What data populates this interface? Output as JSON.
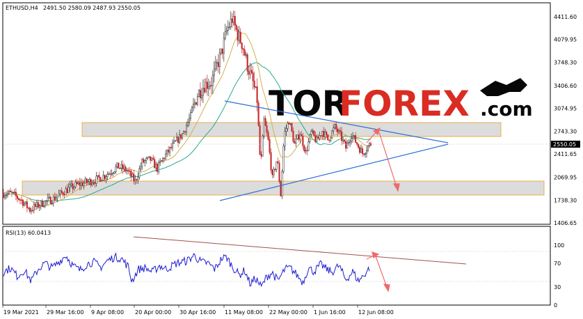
{
  "header": {
    "symbol": "ETHUSD,H4",
    "ohlc": "2491.50 2580.09 2487.93 2550.05",
    "current_price_label": "2550.05",
    "rsi_label": "RSI(13) 60.0413"
  },
  "watermark": {
    "part1": "TOR",
    "part2": "FOREX",
    "part3": ".com"
  },
  "colors": {
    "bull": "#2a2a2a",
    "bear": "#c62828",
    "ma_fast": "#d4b14a",
    "ma_slow": "#2aa68f",
    "trendline": "#2e6fd6",
    "rsi": "#1c1ccf",
    "rsi_trend": "#a05050",
    "arrow": "#ef6a6a",
    "zone_fill": "#dcdcdc",
    "zone_border": "#e8b04a"
  },
  "chart_data": [
    {
      "type": "candlestick",
      "title": "ETHUSD,H4",
      "x": [
        "19 Mar 2021",
        "29 Mar 16:00",
        "9 Apr 08:00",
        "20 Apr 00:00",
        "30 Apr 16:00",
        "11 May 08:00",
        "22 May 00:00",
        "1 Jun 16:00",
        "12 Jun 08:00"
      ],
      "y_ticks": [
        4411.6,
        4079.95,
        3748.3,
        3406.6,
        3074.95,
        2743.3,
        2411.65,
        2069.95,
        1738.3,
        1406.65
      ],
      "ylim": [
        1406.65,
        4411.6
      ],
      "series": [
        {
          "name": "price",
          "x": [
            "19 Mar 2021",
            "29 Mar 16:00",
            "9 Apr 08:00",
            "20 Apr 00:00",
            "30 Apr 16:00",
            "11 May 08:00",
            "22 May 00:00",
            "1 Jun 16:00",
            "12 Jun 08:00"
          ],
          "values": [
            1780,
            1860,
            2080,
            2330,
            2780,
            4180,
            2360,
            2560,
            2550
          ]
        }
      ],
      "price_path": [
        [
          0,
          1840
        ],
        [
          12,
          1830
        ],
        [
          25,
          1745
        ],
        [
          38,
          1600
        ],
        [
          55,
          1690
        ],
        [
          72,
          1760
        ],
        [
          90,
          1880
        ],
        [
          105,
          1960
        ],
        [
          120,
          2000
        ],
        [
          135,
          2040
        ],
        [
          150,
          2120
        ],
        [
          165,
          2230
        ],
        [
          178,
          2170
        ],
        [
          190,
          2010
        ],
        [
          200,
          2290
        ],
        [
          212,
          2330
        ],
        [
          222,
          2200
        ],
        [
          232,
          2370
        ],
        [
          245,
          2540
        ],
        [
          258,
          2700
        ],
        [
          270,
          2960
        ],
        [
          280,
          3280
        ],
        [
          290,
          3420
        ],
        [
          300,
          3460
        ],
        [
          308,
          3700
        ],
        [
          315,
          3900
        ],
        [
          322,
          4200
        ],
        [
          330,
          4380
        ],
        [
          338,
          4150
        ],
        [
          345,
          4000
        ],
        [
          352,
          3700
        ],
        [
          360,
          3450
        ],
        [
          366,
          3200
        ],
        [
          371,
          2200
        ],
        [
          376,
          2900
        ],
        [
          382,
          2600
        ],
        [
          388,
          2050
        ],
        [
          395,
          2350
        ],
        [
          400,
          1820
        ],
        [
          405,
          2700
        ],
        [
          412,
          2900
        ],
        [
          420,
          2550
        ],
        [
          428,
          2720
        ],
        [
          436,
          2430
        ],
        [
          444,
          2720
        ],
        [
          452,
          2600
        ],
        [
          460,
          2750
        ],
        [
          468,
          2620
        ],
        [
          478,
          2800
        ],
        [
          486,
          2680
        ],
        [
          494,
          2500
        ],
        [
          502,
          2700
        ],
        [
          510,
          2560
        ],
        [
          518,
          2420
        ],
        [
          524,
          2500
        ],
        [
          530,
          2560
        ]
      ],
      "annotations": [
        {
          "kind": "zone",
          "from": 2580,
          "to": 2800
        },
        {
          "kind": "zone",
          "from": 1800,
          "to": 2000
        }
      ]
    },
    {
      "type": "line",
      "title": "RSI(13) 60.0413",
      "y_ticks": [
        100,
        70,
        30,
        0
      ],
      "ylim": [
        0,
        100
      ],
      "levels": [
        70,
        30
      ],
      "current_value": 60.0413,
      "rsi_path": [
        [
          0,
          55
        ],
        [
          10,
          62
        ],
        [
          20,
          48
        ],
        [
          30,
          58
        ],
        [
          40,
          40
        ],
        [
          50,
          60
        ],
        [
          60,
          70
        ],
        [
          70,
          62
        ],
        [
          80,
          72
        ],
        [
          90,
          83
        ],
        [
          100,
          66
        ],
        [
          110,
          58
        ],
        [
          120,
          68
        ],
        [
          130,
          72
        ],
        [
          140,
          63
        ],
        [
          150,
          74
        ],
        [
          160,
          80
        ],
        [
          170,
          78
        ],
        [
          180,
          64
        ],
        [
          185,
          40
        ],
        [
          195,
          60
        ],
        [
          205,
          62
        ],
        [
          215,
          55
        ],
        [
          225,
          66
        ],
        [
          235,
          60
        ],
        [
          250,
          70
        ],
        [
          265,
          74
        ],
        [
          275,
          83
        ],
        [
          285,
          72
        ],
        [
          295,
          70
        ],
        [
          305,
          60
        ],
        [
          315,
          78
        ],
        [
          322,
          80
        ],
        [
          330,
          65
        ],
        [
          340,
          50
        ],
        [
          348,
          58
        ],
        [
          356,
          35
        ],
        [
          364,
          45
        ],
        [
          372,
          30
        ],
        [
          380,
          48
        ],
        [
          388,
          54
        ],
        [
          396,
          40
        ],
        [
          406,
          60
        ],
        [
          414,
          62
        ],
        [
          422,
          52
        ],
        [
          432,
          38
        ],
        [
          440,
          62
        ],
        [
          448,
          56
        ],
        [
          458,
          68
        ],
        [
          466,
          60
        ],
        [
          474,
          55
        ],
        [
          484,
          66
        ],
        [
          494,
          42
        ],
        [
          504,
          56
        ],
        [
          512,
          40
        ],
        [
          520,
          50
        ],
        [
          528,
          62
        ]
      ]
    }
  ]
}
